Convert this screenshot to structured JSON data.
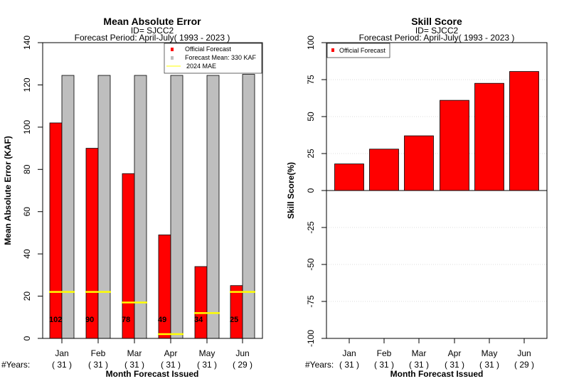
{
  "chart_data": [
    {
      "type": "bar",
      "title": "Mean Absolute Error",
      "subtitle_id": "ID= SJCC2",
      "subtitle_period": "Forecast Period: April-July( 1993 - 2023 )",
      "ylabel": "Mean Absolute Error (KAF)",
      "xlabel": "Month Forecast Issued",
      "years_label": "#Years:",
      "categories": [
        "Jan",
        "Feb",
        "Mar",
        "Apr",
        "May",
        "Jun"
      ],
      "years": [
        "( 31 )",
        "( 31 )",
        "( 31 )",
        "( 31 )",
        "( 31 )",
        "( 29 )"
      ],
      "ylim": [
        0,
        140
      ],
      "yticks": [
        0,
        20,
        40,
        60,
        80,
        100,
        120,
        140
      ],
      "series": [
        {
          "name": "Official Forecast",
          "color": "#ff0000",
          "values": [
            102,
            90,
            78,
            49,
            34,
            25
          ]
        },
        {
          "name": "Forecast Mean: 330 KAF",
          "color": "#bebebe",
          "values": [
            124.5,
            124.5,
            124.5,
            124.5,
            124.5,
            125
          ]
        },
        {
          "name": "2024  MAE",
          "color": "#ffff00",
          "values": [
            22,
            22,
            17,
            2,
            12,
            22
          ]
        }
      ],
      "data_labels": [
        "102",
        "90",
        "78",
        "49",
        "34",
        "25"
      ],
      "legend_position": "top-right"
    },
    {
      "type": "bar",
      "title": "Skill Score",
      "subtitle_id": "ID= SJCC2",
      "subtitle_period": "Forecast Period: April-July( 1993 - 2023 )",
      "ylabel": "Skill Score(%)",
      "xlabel": "Month Forecast Issued",
      "years_label": "#Years:",
      "categories": [
        "Jan",
        "Feb",
        "Mar",
        "Apr",
        "May",
        "Jun"
      ],
      "years": [
        "( 31 )",
        "( 31 )",
        "( 31 )",
        "( 31 )",
        "( 31 )",
        "( 29 )"
      ],
      "ylim": [
        -100,
        100
      ],
      "yticks": [
        -100,
        -75,
        -50,
        -25,
        0,
        25,
        50,
        75,
        100
      ],
      "series": [
        {
          "name": "Official Forecast",
          "color": "#ff0000",
          "values": [
            18,
            28,
            37,
            61,
            72.5,
            80.5
          ]
        }
      ],
      "grid": true,
      "legend_position": "top-left"
    }
  ]
}
